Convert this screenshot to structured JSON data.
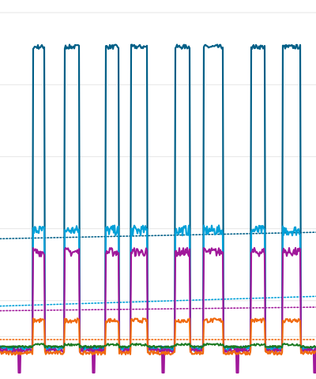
{
  "colors": {
    "background": "#ffffff",
    "gridline": "#e6e6e6"
  },
  "chart_data": {
    "type": "line",
    "title": "",
    "xlabel": "",
    "ylabel": "",
    "xlim": [
      0,
      400
    ],
    "ylim": [
      0,
      1
    ],
    "grid": true,
    "gridlines_y": [
      0.1,
      0.2,
      0.4,
      0.6,
      0.8,
      1.0
    ],
    "pulses": [
      [
        42,
        56
      ],
      [
        82,
        100
      ],
      [
        134,
        150
      ],
      [
        166,
        186
      ],
      [
        222,
        240
      ],
      [
        258,
        282
      ],
      [
        318,
        335
      ],
      [
        358,
        380
      ]
    ],
    "dips": [
      24,
      118,
      206,
      300,
      398
    ],
    "series": [
      {
        "color": "#005f87",
        "base": 0.07,
        "high": 0.905,
        "noise": 0.004,
        "ripple": 0.006,
        "width": 2.2
      },
      {
        "color": "#00a0d8",
        "base": 0.066,
        "high": 0.395,
        "noise": 0.006,
        "ripple": 0.014,
        "width": 2.2
      },
      {
        "color": "#a0189a",
        "base": 0.062,
        "high": 0.335,
        "noise": 0.005,
        "ripple": 0.012,
        "width": 2.2
      },
      {
        "color": "#f06a10",
        "base": 0.055,
        "high": 0.145,
        "noise": 0.005,
        "ripple": 0.006,
        "width": 2.2
      },
      {
        "color": "#1a7a20",
        "base": 0.072,
        "high": 0.078,
        "noise": 0.003,
        "ripple": 0.003,
        "width": 2.0
      }
    ],
    "trend_lines": [
      {
        "color": "#005f87",
        "start": 0.372,
        "end": 0.39
      },
      {
        "color": "#00a0d8",
        "start": 0.185,
        "end": 0.212
      },
      {
        "color": "#a0189a",
        "start": 0.172,
        "end": 0.182
      },
      {
        "color": "#f06a10",
        "start": 0.092,
        "end": 0.092
      }
    ]
  }
}
